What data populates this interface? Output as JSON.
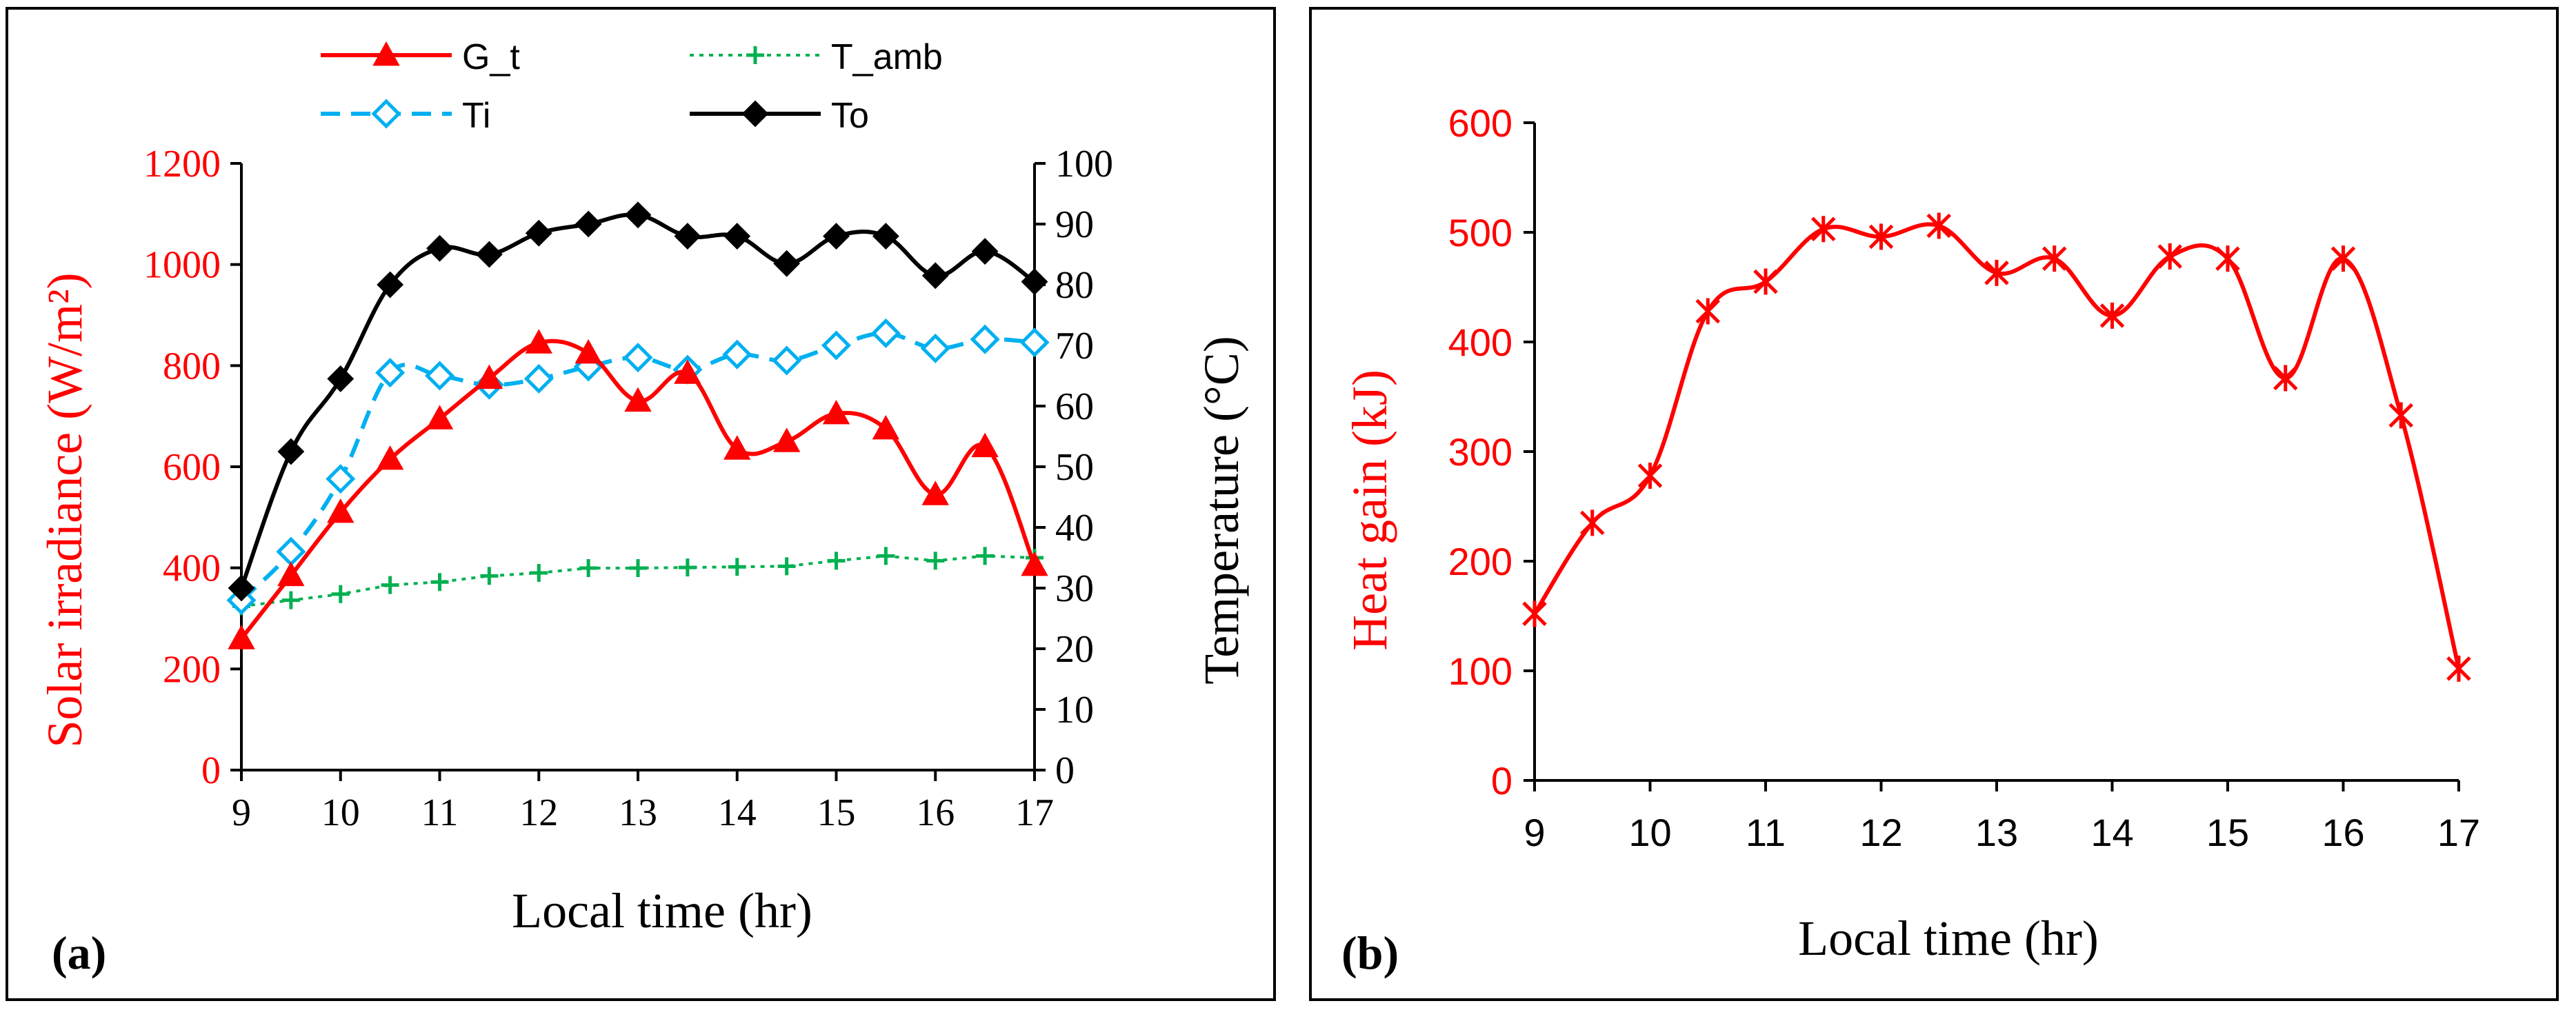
{
  "chart_data": [
    {
      "panel_label": "(a)",
      "type": "line",
      "xlabel": "Local time (hr)",
      "ylabel_left": "Solar irradiance (W/m²)",
      "ylabel_right": "Temperature (°C)",
      "xlim": [
        9,
        17
      ],
      "ylim_left": [
        0,
        1200
      ],
      "ylim_right": [
        0,
        100
      ],
      "x_ticks": [
        "9",
        "10",
        "11",
        "12",
        "13",
        "14",
        "15",
        "16",
        "17"
      ],
      "y_ticks_left": [
        "0",
        "200",
        "400",
        "600",
        "800",
        "1000",
        "1200"
      ],
      "y_ticks_right": [
        "0",
        "10",
        "20",
        "30",
        "40",
        "50",
        "60",
        "70",
        "80",
        "90",
        "100"
      ],
      "x": [
        9,
        9.5,
        10,
        10.5,
        11,
        11.5,
        12,
        12.5,
        13,
        13.5,
        14,
        14.5,
        15,
        15.5,
        16,
        16.5,
        17
      ],
      "grid": false,
      "legend_position": "top",
      "series": [
        {
          "name": "G_t",
          "axis": "left",
          "color": "#ff0000",
          "marker": "triangle",
          "dash": "solid",
          "smooth": true,
          "values": [
            260,
            385,
            510,
            615,
            695,
            775,
            845,
            825,
            730,
            785,
            635,
            650,
            705,
            675,
            545,
            640,
            405
          ]
        },
        {
          "name": "T_amb",
          "axis": "right",
          "color": "#00b050",
          "marker": "plus",
          "dash": "dotted",
          "smooth": false,
          "values": [
            27,
            28,
            29,
            30.5,
            31,
            32,
            32.5,
            33.3,
            33.3,
            33.4,
            33.5,
            33.6,
            34.5,
            35.3,
            34.5,
            35.3,
            35
          ]
        },
        {
          "name": "Ti",
          "axis": "right",
          "color": "#00b0f0",
          "marker": "diamond-open",
          "dash": "dashed",
          "smooth": true,
          "values": [
            28,
            36,
            48,
            65.5,
            65,
            63.5,
            64.5,
            66.5,
            68,
            66,
            68.5,
            67.5,
            70,
            72,
            69.5,
            71,
            70.5
          ]
        },
        {
          "name": "To",
          "axis": "right",
          "color": "#000000",
          "marker": "diamond",
          "dash": "solid",
          "smooth": true,
          "values": [
            30,
            52.5,
            64.5,
            80,
            86,
            85,
            88.5,
            90,
            91.5,
            88,
            88,
            83.5,
            88,
            88,
            81.5,
            85.5,
            80.5
          ]
        }
      ]
    },
    {
      "panel_label": "(b)",
      "type": "line",
      "xlabel": "Local time (hr)",
      "ylabel": "Heat gain (kJ)",
      "xlim": [
        9,
        17
      ],
      "ylim": [
        0,
        600
      ],
      "x_ticks": [
        "9",
        "10",
        "11",
        "12",
        "13",
        "14",
        "15",
        "16",
        "17"
      ],
      "y_ticks": [
        "0",
        "100",
        "200",
        "300",
        "400",
        "500",
        "600"
      ],
      "x": [
        9,
        9.5,
        10,
        10.5,
        11,
        11.5,
        12,
        12.5,
        13,
        13.5,
        14,
        14.5,
        15,
        15.5,
        16,
        16.5,
        17
      ],
      "grid": false,
      "series": [
        {
          "name": "",
          "color": "#ff0000",
          "marker": "star",
          "dash": "solid",
          "smooth": true,
          "values": [
            152,
            235,
            278,
            428,
            455,
            503,
            496,
            506,
            463,
            476,
            424,
            478,
            476,
            367,
            476,
            333,
            102
          ]
        }
      ]
    }
  ]
}
